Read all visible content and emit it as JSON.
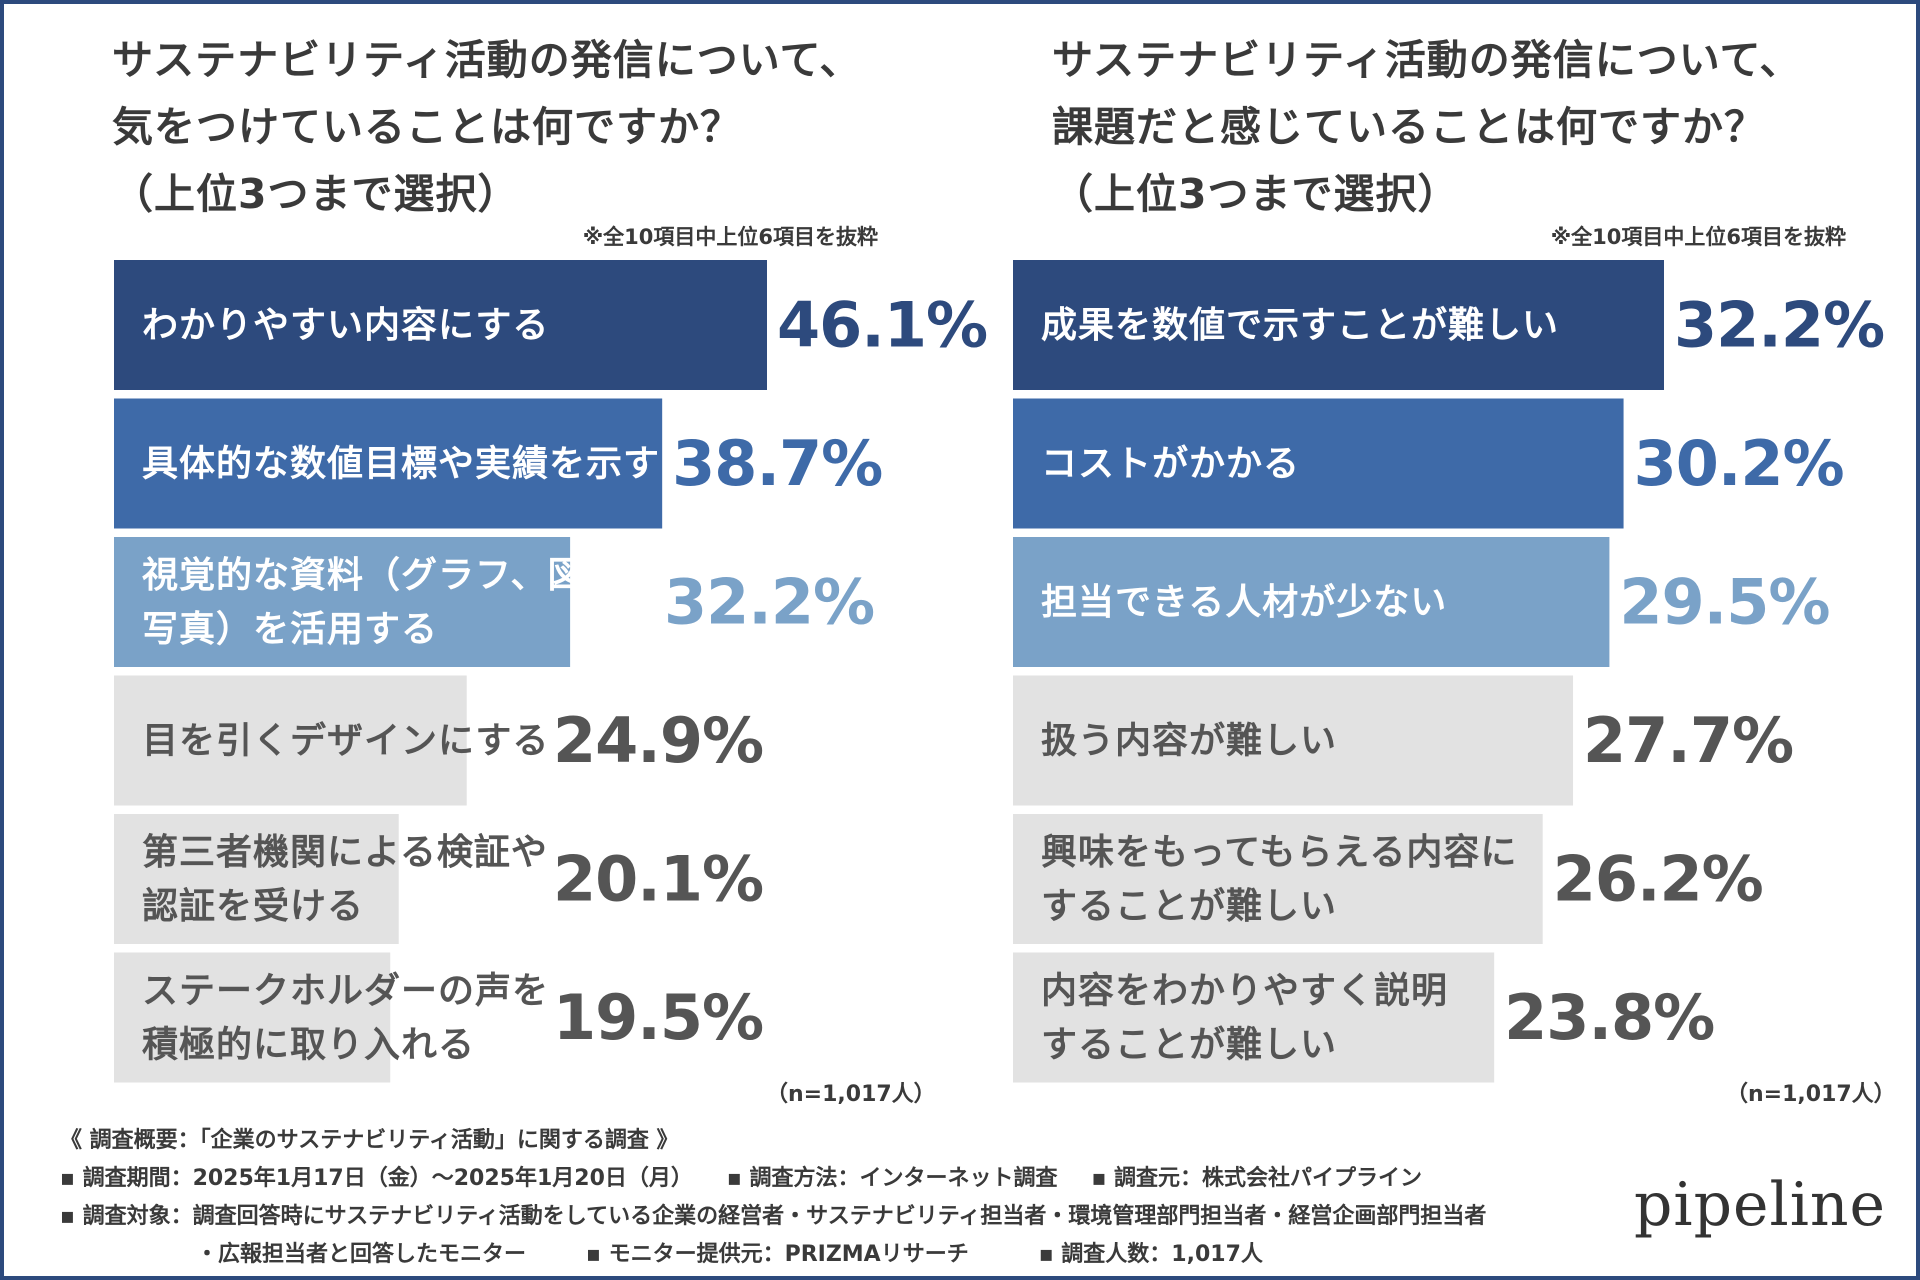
{
  "left_panel": {
    "title_lines": [
      "サステナビリティ活動の発信について、",
      "気をつけていることは何ですか？",
      "（上位3つまで選択）"
    ],
    "note": "※全10項目中上位6項目を抜粋",
    "n_label": "（n=1,017人）"
  },
  "right_panel": {
    "title_lines": [
      "サステナビリティ活動の発信について、",
      "課題だと感じていることは何ですか？",
      "（上位3つまで選択）"
    ],
    "note": "※全10項目中上位6項目を抜粋",
    "n_label": "（n=1,017人）"
  },
  "chart_data": [
    {
      "type": "bar",
      "orientation": "horizontal",
      "title": "サステナビリティ活動の発信について、気をつけていることは何ですか？（上位3つまで選択）",
      "unit": "%",
      "categories": [
        [
          "わかりやすい内容にする"
        ],
        [
          "具体的な数値目標や実績を示す"
        ],
        [
          "視覚的な資料（グラフ、図表、",
          "写真）を活用する"
        ],
        [
          "目を引くデザインにする"
        ],
        [
          "第三者機関による検証や",
          "認証を受ける"
        ],
        [
          "ステークホルダーの声を",
          "積極的に取り入れる"
        ]
      ],
      "values": [
        46.1,
        38.7,
        32.2,
        24.9,
        20.1,
        19.5
      ],
      "value_labels": [
        "46.1%",
        "38.7%",
        "32.2%",
        "24.9%",
        "20.1%",
        "19.5%"
      ],
      "bar_colors": [
        "#2d4a7d",
        "#3e6aa8",
        "#7aa2c8",
        "#e2e2e2",
        "#e2e2e2",
        "#e2e2e2"
      ],
      "value_colors": [
        "#2d4a7d",
        "#3e6aa8",
        "#7aa2c8",
        "#555555",
        "#555555",
        "#555555"
      ],
      "label_colors": [
        "#ffffff",
        "#ffffff",
        "#ffffff",
        "#555555",
        "#555555",
        "#555555"
      ]
    },
    {
      "type": "bar",
      "orientation": "horizontal",
      "title": "サステナビリティ活動の発信について、課題だと感じていることは何ですか？（上位3つまで選択）",
      "unit": "%",
      "categories": [
        [
          "成果を数値で示すことが難しい"
        ],
        [
          "コストがかかる"
        ],
        [
          "担当できる人材が少ない"
        ],
        [
          "扱う内容が難しい"
        ],
        [
          "興味をもってもらえる内容に",
          "することが難しい"
        ],
        [
          "内容をわかりやすく説明",
          "することが難しい"
        ]
      ],
      "values": [
        32.2,
        30.2,
        29.5,
        27.7,
        26.2,
        23.8
      ],
      "value_labels": [
        "32.2%",
        "30.2%",
        "29.5%",
        "27.7%",
        "26.2%",
        "23.8%"
      ],
      "bar_colors": [
        "#2d4a7d",
        "#3e6aa8",
        "#7aa2c8",
        "#e2e2e2",
        "#e2e2e2",
        "#e2e2e2"
      ],
      "value_colors": [
        "#2d4a7d",
        "#3e6aa8",
        "#7aa2c8",
        "#555555",
        "#555555",
        "#555555"
      ],
      "label_colors": [
        "#ffffff",
        "#ffffff",
        "#ffffff",
        "#555555",
        "#555555",
        "#555555"
      ]
    }
  ],
  "footer": {
    "heading": "《 調査概要：「企業のサステナビリティ活動」に関する調査 》",
    "period": "▪ 調査期間：2025年1月17日（金）〜2025年1月20日（月）",
    "method": "▪ 調査方法：インターネット調査",
    "source": "▪ 調査元：株式会社パイプライン",
    "target": "▪ 調査対象：調査回答時にサステナビリティ活動をしている企業の経営者・サステナビリティ担当者・環境管理部門担当者・経営企画部門担当者",
    "target_cont": "・広報担当者と回答したモニター",
    "provider": "▪ モニター提供元：PRIZMAリサーチ",
    "count": "▪ 調査人数：1,017人"
  },
  "logo": "pipeline"
}
